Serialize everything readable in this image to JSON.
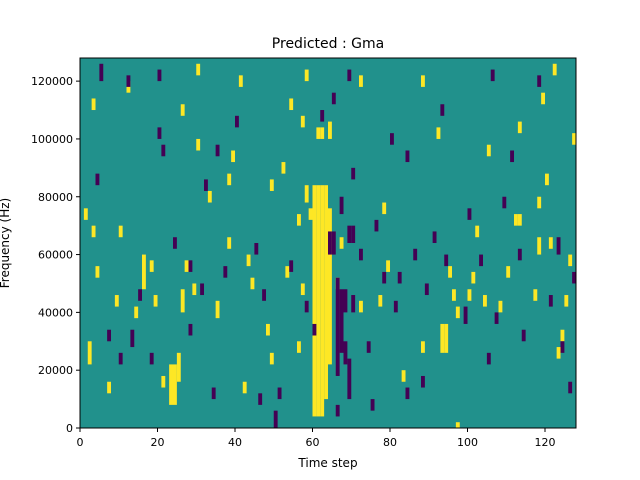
{
  "chart_data": {
    "type": "heatmap",
    "title": "Predicted : Gma",
    "xlabel": "Time step",
    "ylabel": "Frequency (Hz)",
    "xlim": [
      0,
      128
    ],
    "ylim": [
      0,
      128000
    ],
    "x_ticks": [
      0,
      20,
      40,
      60,
      80,
      100,
      120
    ],
    "x_tick_labels": [
      "0",
      "20",
      "40",
      "60",
      "80",
      "100",
      "120"
    ],
    "y_ticks": [
      0,
      20000,
      40000,
      60000,
      80000,
      100000,
      120000
    ],
    "y_tick_labels": [
      "0",
      "20000",
      "40000",
      "60000",
      "80000",
      "100000",
      "120000"
    ],
    "colors": {
      "background": "#21918c",
      "high": "#fde725",
      "low": "#440154"
    },
    "cell_size": [
      1,
      2000
    ],
    "yellow_cells": [
      [
        60,
        4000,
        84000
      ],
      [
        61,
        4000,
        84000
      ],
      [
        62,
        4000,
        84000
      ],
      [
        63,
        10000,
        84000
      ],
      [
        64,
        22000,
        76000
      ],
      [
        62,
        100000,
        104000
      ],
      [
        61,
        100000,
        104000
      ],
      [
        64,
        100000,
        106000
      ],
      [
        23,
        8000,
        22000
      ],
      [
        24,
        8000,
        22000
      ],
      [
        21,
        14000,
        18000
      ],
      [
        25,
        16000,
        26000
      ],
      [
        2,
        22000,
        30000
      ],
      [
        3,
        66000,
        70000
      ],
      [
        1,
        72000,
        76000
      ],
      [
        7,
        12000,
        16000
      ],
      [
        9,
        42000,
        46000
      ],
      [
        16,
        48000,
        60000
      ],
      [
        18,
        54000,
        58000
      ],
      [
        19,
        42000,
        46000
      ],
      [
        26,
        40000,
        48000
      ],
      [
        27,
        54000,
        58000
      ],
      [
        29,
        46000,
        50000
      ],
      [
        35,
        38000,
        44000
      ],
      [
        38,
        62000,
        66000
      ],
      [
        38,
        84000,
        88000
      ],
      [
        42,
        12000,
        16000
      ],
      [
        43,
        56000,
        60000
      ],
      [
        44,
        48000,
        52000
      ],
      [
        48,
        32000,
        36000
      ],
      [
        49,
        22000,
        26000
      ],
      [
        53,
        52000,
        56000
      ],
      [
        56,
        26000,
        30000
      ],
      [
        56,
        70000,
        74000
      ],
      [
        57,
        46000,
        50000
      ],
      [
        58,
        78000,
        84000
      ],
      [
        59,
        72000,
        76000
      ],
      [
        54,
        110000,
        114000
      ],
      [
        58,
        120000,
        124000
      ],
      [
        66,
        48000,
        52000
      ],
      [
        67,
        62000,
        66000
      ],
      [
        72,
        40000,
        44000
      ],
      [
        77,
        42000,
        46000
      ],
      [
        79,
        54000,
        58000
      ],
      [
        83,
        16000,
        20000
      ],
      [
        88,
        26000,
        30000
      ],
      [
        93,
        26000,
        36000
      ],
      [
        94,
        26000,
        36000
      ],
      [
        95,
        52000,
        56000
      ],
      [
        97,
        38000,
        42000
      ],
      [
        97,
        0,
        2000
      ],
      [
        101,
        50000,
        54000
      ],
      [
        102,
        66000,
        70000
      ],
      [
        104,
        42000,
        46000
      ],
      [
        108,
        40000,
        44000
      ],
      [
        110,
        52000,
        56000
      ],
      [
        112,
        70000,
        74000
      ],
      [
        113,
        70000,
        74000
      ],
      [
        117,
        44000,
        48000
      ],
      [
        118,
        60000,
        66000
      ],
      [
        121,
        62000,
        66000
      ],
      [
        123,
        24000,
        28000
      ],
      [
        124,
        30000,
        34000
      ],
      [
        125,
        42000,
        46000
      ],
      [
        126,
        56000,
        60000
      ],
      [
        3,
        110000,
        114000
      ],
      [
        12,
        116000,
        120000
      ],
      [
        26,
        108000,
        112000
      ],
      [
        30,
        122000,
        126000
      ],
      [
        41,
        118000,
        122000
      ],
      [
        57,
        104000,
        108000
      ],
      [
        72,
        118000,
        122000
      ],
      [
        88,
        118000,
        122000
      ],
      [
        92,
        100000,
        104000
      ],
      [
        105,
        94000,
        98000
      ],
      [
        113,
        102000,
        106000
      ],
      [
        119,
        112000,
        116000
      ],
      [
        122,
        122000,
        126000
      ],
      [
        4,
        52000,
        56000
      ],
      [
        10,
        66000,
        70000
      ],
      [
        14,
        38000,
        42000
      ],
      [
        30,
        96000,
        100000
      ],
      [
        33,
        78000,
        82000
      ],
      [
        39,
        92000,
        96000
      ],
      [
        49,
        82000,
        86000
      ],
      [
        52,
        88000,
        92000
      ],
      [
        78,
        74000,
        78000
      ],
      [
        96,
        44000,
        48000
      ],
      [
        100,
        44000,
        48000
      ],
      [
        120,
        84000,
        88000
      ],
      [
        118,
        76000,
        80000
      ],
      [
        127,
        98000,
        102000
      ]
    ],
    "purple_cells": [
      [
        64,
        60000,
        68000
      ],
      [
        65,
        60000,
        68000
      ],
      [
        66,
        18000,
        52000
      ],
      [
        67,
        26000,
        48000
      ],
      [
        68,
        22000,
        30000
      ],
      [
        69,
        10000,
        24000
      ],
      [
        68,
        40000,
        48000
      ],
      [
        70,
        40000,
        46000
      ],
      [
        69,
        64000,
        70000
      ],
      [
        70,
        64000,
        70000
      ],
      [
        66,
        4000,
        8000
      ],
      [
        67,
        74000,
        80000
      ],
      [
        70,
        86000,
        90000
      ],
      [
        65,
        112000,
        116000
      ],
      [
        69,
        120000,
        124000
      ],
      [
        50,
        0,
        6000
      ],
      [
        51,
        10000,
        14000
      ],
      [
        47,
        44000,
        48000
      ],
      [
        45,
        60000,
        64000
      ],
      [
        37,
        52000,
        56000
      ],
      [
        35,
        94000,
        98000
      ],
      [
        32,
        82000,
        86000
      ],
      [
        31,
        46000,
        50000
      ],
      [
        28,
        54000,
        58000
      ],
      [
        24,
        62000,
        66000
      ],
      [
        21,
        94000,
        98000
      ],
      [
        20,
        100000,
        104000
      ],
      [
        20,
        120000,
        124000
      ],
      [
        12,
        118000,
        122000
      ],
      [
        5,
        120000,
        126000
      ],
      [
        4,
        84000,
        88000
      ],
      [
        7,
        30000,
        34000
      ],
      [
        10,
        22000,
        26000
      ],
      [
        13,
        28000,
        34000
      ],
      [
        15,
        44000,
        48000
      ],
      [
        18,
        22000,
        26000
      ],
      [
        28,
        32000,
        36000
      ],
      [
        34,
        10000,
        14000
      ],
      [
        40,
        104000,
        108000
      ],
      [
        46,
        8000,
        12000
      ],
      [
        54,
        54000,
        58000
      ],
      [
        58,
        40000,
        44000
      ],
      [
        60,
        32000,
        36000
      ],
      [
        72,
        58000,
        62000
      ],
      [
        74,
        26000,
        30000
      ],
      [
        76,
        68000,
        72000
      ],
      [
        78,
        50000,
        54000
      ],
      [
        81,
        40000,
        44000
      ],
      [
        82,
        50000,
        54000
      ],
      [
        84,
        92000,
        96000
      ],
      [
        86,
        58000,
        62000
      ],
      [
        89,
        46000,
        50000
      ],
      [
        91,
        64000,
        68000
      ],
      [
        93,
        108000,
        112000
      ],
      [
        94,
        56000,
        60000
      ],
      [
        99,
        36000,
        42000
      ],
      [
        100,
        72000,
        76000
      ],
      [
        103,
        56000,
        60000
      ],
      [
        105,
        22000,
        26000
      ],
      [
        107,
        36000,
        40000
      ],
      [
        106,
        120000,
        124000
      ],
      [
        109,
        76000,
        80000
      ],
      [
        111,
        92000,
        96000
      ],
      [
        113,
        58000,
        62000
      ],
      [
        114,
        30000,
        34000
      ],
      [
        118,
        118000,
        122000
      ],
      [
        121,
        42000,
        46000
      ],
      [
        123,
        60000,
        66000
      ],
      [
        124,
        26000,
        30000
      ],
      [
        126,
        12000,
        16000
      ],
      [
        127,
        50000,
        54000
      ],
      [
        80,
        98000,
        102000
      ],
      [
        75,
        6000,
        10000
      ],
      [
        84,
        10000,
        14000
      ],
      [
        88,
        14000,
        18000
      ],
      [
        62,
        106000,
        110000
      ]
    ]
  }
}
